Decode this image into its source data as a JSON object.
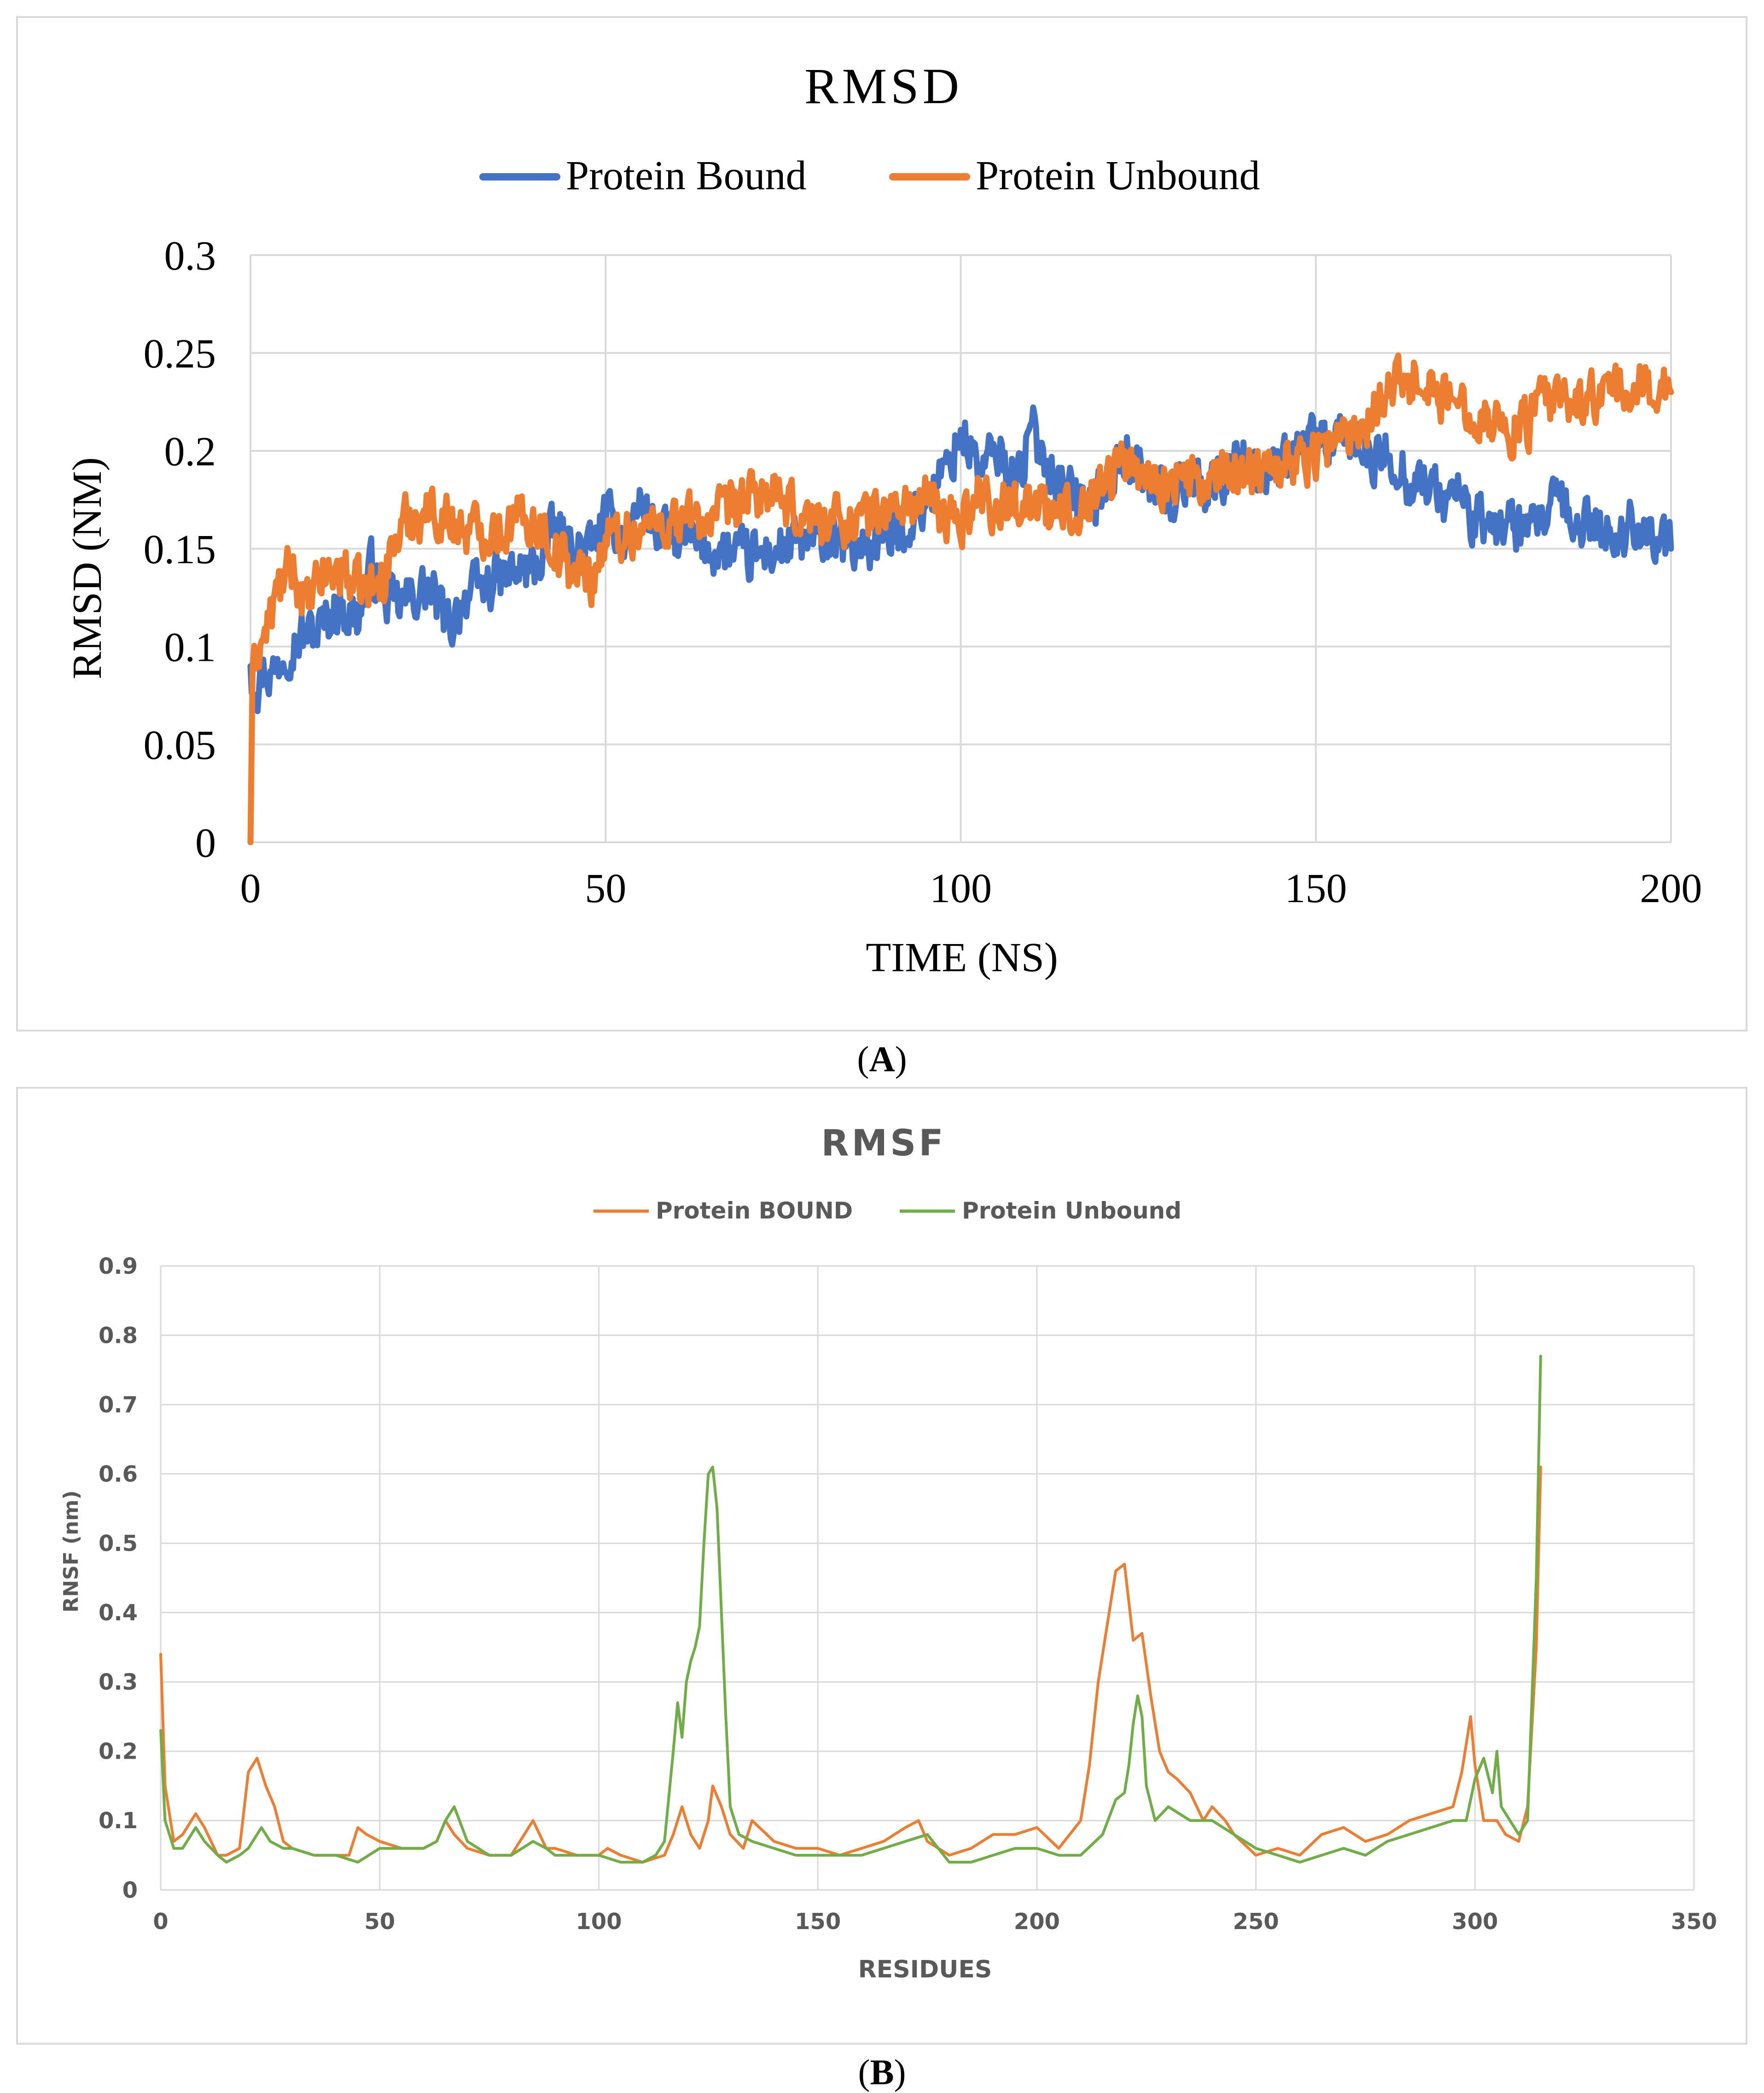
{
  "chart_data": [
    {
      "type": "line",
      "title": "RMSD",
      "xlabel": "TIME (NS)",
      "ylabel": "RMSD (NM)",
      "xlim": [
        0,
        200
      ],
      "ylim": [
        0,
        0.3
      ],
      "xticks": [
        "0",
        "50",
        "100",
        "150",
        "200"
      ],
      "yticks": [
        "0",
        "0.05",
        "0.1",
        "0.15",
        "0.2",
        "0.25",
        "0.3"
      ],
      "grid": true,
      "legend": "top-center",
      "series": [
        {
          "name": "Protein Bound",
          "color": "#4472c4",
          "x": [
            0,
            0.5,
            1,
            2,
            3,
            5,
            7,
            10,
            12,
            15,
            17,
            20,
            25,
            28,
            30,
            35,
            40,
            43,
            45,
            48,
            50,
            53,
            55,
            57,
            60,
            65,
            70,
            75,
            80,
            85,
            90,
            93,
            95,
            98,
            100,
            103,
            105,
            108,
            110,
            113,
            115,
            118,
            120,
            123,
            125,
            128,
            130,
            133,
            135,
            138,
            140,
            143,
            145,
            148,
            150,
            153,
            155,
            158,
            160,
            163,
            165,
            168,
            170,
            172,
            175,
            177,
            180,
            182,
            184,
            186,
            188,
            190,
            193,
            195,
            198,
            200
          ],
          "y": [
            0.09,
            0.085,
            0.08,
            0.09,
            0.085,
            0.1,
            0.105,
            0.11,
            0.12,
            0.115,
            0.14,
            0.12,
            0.13,
            0.11,
            0.125,
            0.135,
            0.14,
            0.16,
            0.15,
            0.15,
            0.165,
            0.155,
            0.175,
            0.16,
            0.155,
            0.15,
            0.145,
            0.15,
            0.155,
            0.15,
            0.155,
            0.165,
            0.175,
            0.19,
            0.21,
            0.19,
            0.2,
            0.185,
            0.21,
            0.19,
            0.18,
            0.17,
            0.18,
            0.2,
            0.19,
            0.18,
            0.175,
            0.19,
            0.18,
            0.19,
            0.2,
            0.185,
            0.19,
            0.2,
            0.21,
            0.2,
            0.21,
            0.19,
            0.2,
            0.185,
            0.185,
            0.175,
            0.18,
            0.165,
            0.16,
            0.165,
            0.155,
            0.165,
            0.175,
            0.16,
            0.165,
            0.16,
            0.155,
            0.165,
            0.155,
            0.15
          ]
        },
        {
          "name": "Protein Unbound",
          "color": "#ed7d31",
          "x": [
            0,
            0.3,
            1,
            2,
            4,
            6,
            8,
            10,
            13,
            15,
            18,
            20,
            22,
            25,
            28,
            30,
            35,
            38,
            40,
            45,
            48,
            50,
            55,
            60,
            65,
            68,
            70,
            73,
            75,
            80,
            85,
            90,
            95,
            98,
            100,
            103,
            105,
            108,
            110,
            113,
            115,
            118,
            120,
            123,
            125,
            128,
            130,
            133,
            135,
            138,
            140,
            143,
            145,
            148,
            150,
            153,
            155,
            157,
            160,
            163,
            165,
            168,
            170,
            173,
            175,
            178,
            180,
            182,
            185,
            188,
            190,
            193,
            195,
            198,
            200
          ],
          "y": [
            0,
            0.08,
            0.1,
            0.105,
            0.13,
            0.14,
            0.12,
            0.135,
            0.14,
            0.13,
            0.13,
            0.15,
            0.165,
            0.17,
            0.165,
            0.16,
            0.16,
            0.165,
            0.165,
            0.14,
            0.135,
            0.155,
            0.16,
            0.165,
            0.165,
            0.17,
            0.175,
            0.18,
            0.17,
            0.165,
            0.165,
            0.17,
            0.175,
            0.165,
            0.165,
            0.18,
            0.17,
            0.175,
            0.175,
            0.165,
            0.17,
            0.175,
            0.185,
            0.195,
            0.19,
            0.185,
            0.185,
            0.185,
            0.18,
            0.19,
            0.19,
            0.195,
            0.195,
            0.195,
            0.2,
            0.205,
            0.21,
            0.215,
            0.235,
            0.235,
            0.24,
            0.225,
            0.225,
            0.22,
            0.215,
            0.21,
            0.215,
            0.225,
            0.225,
            0.225,
            0.23,
            0.23,
            0.23,
            0.235,
            0.23
          ]
        }
      ]
    },
    {
      "type": "line",
      "title": "RMSF",
      "xlabel": "RESIDUES",
      "ylabel": "RNSF (nm)",
      "xlim": [
        0,
        350
      ],
      "ylim": [
        0,
        0.9
      ],
      "xticks": [
        "0",
        "50",
        "100",
        "150",
        "200",
        "250",
        "300",
        "350"
      ],
      "yticks": [
        "0",
        "0.1",
        "0.2",
        "0.3",
        "0.4",
        "0.5",
        "0.6",
        "0.7",
        "0.8",
        "0.9"
      ],
      "grid": true,
      "legend": "top-center",
      "series": [
        {
          "name": "Protein BOUND",
          "color": "#ed7d31",
          "x": [
            0,
            1,
            3,
            5,
            8,
            10,
            13,
            15,
            18,
            20,
            22,
            24,
            26,
            28,
            30,
            35,
            40,
            43,
            45,
            47,
            50,
            55,
            60,
            63,
            65,
            67,
            70,
            75,
            80,
            85,
            88,
            90,
            95,
            100,
            102,
            105,
            110,
            115,
            117,
            119,
            121,
            123,
            125,
            126,
            128,
            130,
            133,
            135,
            140,
            145,
            150,
            155,
            160,
            165,
            170,
            173,
            175,
            180,
            185,
            190,
            195,
            200,
            205,
            210,
            212,
            214,
            216,
            218,
            220,
            222,
            224,
            226,
            228,
            230,
            232,
            235,
            238,
            240,
            243,
            245,
            250,
            255,
            260,
            265,
            270,
            275,
            280,
            285,
            290,
            295,
            297,
            299,
            300,
            302,
            305,
            307,
            310,
            312,
            314,
            315
          ],
          "y": [
            0.34,
            0.15,
            0.07,
            0.08,
            0.11,
            0.09,
            0.05,
            0.05,
            0.06,
            0.17,
            0.19,
            0.15,
            0.12,
            0.07,
            0.06,
            0.05,
            0.05,
            0.05,
            0.09,
            0.08,
            0.07,
            0.06,
            0.06,
            0.07,
            0.1,
            0.08,
            0.06,
            0.05,
            0.05,
            0.1,
            0.06,
            0.06,
            0.05,
            0.05,
            0.06,
            0.05,
            0.04,
            0.05,
            0.08,
            0.12,
            0.08,
            0.06,
            0.1,
            0.15,
            0.12,
            0.08,
            0.06,
            0.1,
            0.07,
            0.06,
            0.06,
            0.05,
            0.06,
            0.07,
            0.09,
            0.1,
            0.07,
            0.05,
            0.06,
            0.08,
            0.08,
            0.09,
            0.06,
            0.1,
            0.18,
            0.3,
            0.38,
            0.46,
            0.47,
            0.36,
            0.37,
            0.28,
            0.2,
            0.17,
            0.16,
            0.14,
            0.1,
            0.12,
            0.1,
            0.08,
            0.05,
            0.06,
            0.05,
            0.08,
            0.09,
            0.07,
            0.08,
            0.1,
            0.11,
            0.12,
            0.17,
            0.25,
            0.18,
            0.1,
            0.1,
            0.08,
            0.07,
            0.12,
            0.35,
            0.61
          ]
        },
        {
          "name": "Protein Unbound",
          "color": "#70ad47",
          "x": [
            0,
            1,
            3,
            5,
            8,
            10,
            13,
            15,
            18,
            20,
            23,
            25,
            28,
            30,
            35,
            40,
            45,
            50,
            55,
            60,
            63,
            65,
            67,
            70,
            75,
            80,
            85,
            88,
            90,
            95,
            100,
            105,
            110,
            113,
            115,
            117,
            118,
            119,
            120,
            121,
            122,
            123,
            124,
            125,
            126,
            127,
            128,
            129,
            130,
            132,
            135,
            140,
            145,
            150,
            155,
            160,
            165,
            170,
            175,
            180,
            185,
            190,
            195,
            200,
            205,
            210,
            215,
            218,
            220,
            221,
            222,
            223,
            224,
            225,
            227,
            230,
            235,
            240,
            245,
            250,
            255,
            260,
            265,
            270,
            275,
            280,
            285,
            290,
            295,
            298,
            300,
            302,
            304,
            305,
            306,
            308,
            310,
            312,
            314,
            315
          ],
          "y": [
            0.23,
            0.1,
            0.06,
            0.06,
            0.09,
            0.07,
            0.05,
            0.04,
            0.05,
            0.06,
            0.09,
            0.07,
            0.06,
            0.06,
            0.05,
            0.05,
            0.04,
            0.06,
            0.06,
            0.06,
            0.07,
            0.1,
            0.12,
            0.07,
            0.05,
            0.05,
            0.07,
            0.06,
            0.05,
            0.05,
            0.05,
            0.04,
            0.04,
            0.05,
            0.07,
            0.2,
            0.27,
            0.22,
            0.3,
            0.33,
            0.35,
            0.38,
            0.5,
            0.6,
            0.61,
            0.55,
            0.4,
            0.25,
            0.12,
            0.08,
            0.07,
            0.06,
            0.05,
            0.05,
            0.05,
            0.05,
            0.06,
            0.07,
            0.08,
            0.04,
            0.04,
            0.05,
            0.06,
            0.06,
            0.05,
            0.05,
            0.08,
            0.13,
            0.14,
            0.18,
            0.24,
            0.28,
            0.25,
            0.15,
            0.1,
            0.12,
            0.1,
            0.1,
            0.08,
            0.06,
            0.05,
            0.04,
            0.05,
            0.06,
            0.05,
            0.07,
            0.08,
            0.09,
            0.1,
            0.1,
            0.16,
            0.19,
            0.14,
            0.2,
            0.12,
            0.1,
            0.08,
            0.1,
            0.45,
            0.77
          ]
        }
      ]
    }
  ],
  "captions": {
    "a": "A",
    "b": "B"
  }
}
